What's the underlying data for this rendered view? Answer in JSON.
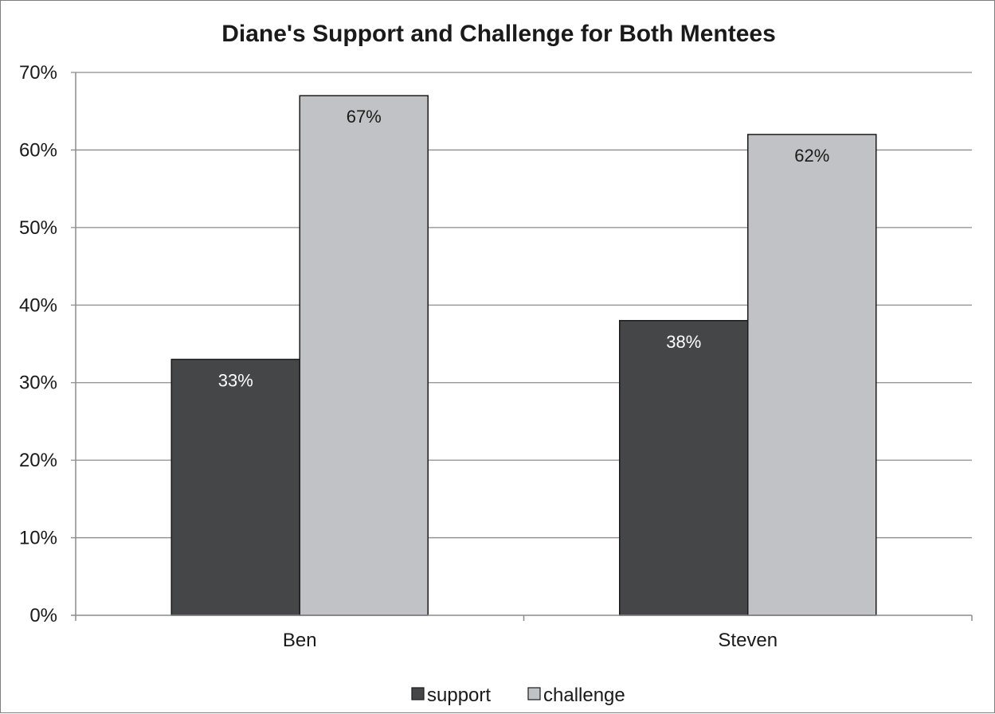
{
  "chart_data": {
    "type": "bar",
    "title": "Diane's Support and Challenge for Both Mentees",
    "xlabel": "",
    "ylabel": "",
    "categories": [
      "Ben",
      "Steven"
    ],
    "series": [
      {
        "name": "support",
        "values": [
          33,
          38
        ],
        "labels": [
          "33%",
          "38%"
        ],
        "color": "#454648",
        "label_color": "#ffffff"
      },
      {
        "name": "challenge",
        "values": [
          67,
          62
        ],
        "labels": [
          "67%",
          "62%"
        ],
        "color": "#c1c2c6",
        "label_color": "#1a1a1a"
      }
    ],
    "ylim": [
      0,
      70
    ],
    "yticks": [
      0,
      10,
      20,
      30,
      40,
      50,
      60,
      70
    ],
    "ytick_labels": [
      "0%",
      "10%",
      "20%",
      "30%",
      "40%",
      "50%",
      "60%",
      "70%"
    ],
    "grid": true,
    "legend_position": "bottom",
    "gridline_color": "#8c8c8c",
    "bar_outline_color": "#1a1a1a"
  }
}
